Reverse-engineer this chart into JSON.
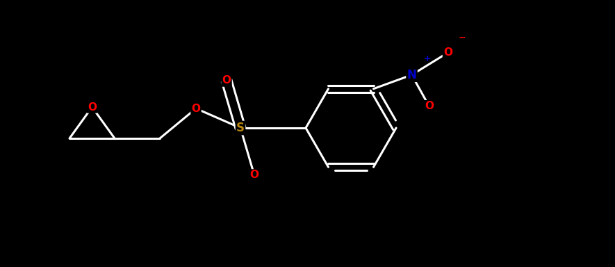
{
  "background_color": "#000000",
  "figsize": [
    8.85,
    3.84
  ],
  "dpi": 100,
  "bond_color": "#ffffff",
  "lw": 2.2,
  "atom_colors": {
    "O": "#ff0000",
    "S": "#b8860b",
    "N": "#0000cd",
    "C": "#ffffff"
  },
  "xlim": [
    0,
    8.85
  ],
  "ylim": [
    0,
    3.84
  ]
}
